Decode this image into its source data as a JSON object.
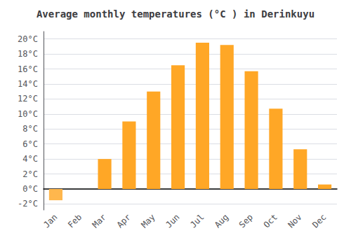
{
  "chart_data": {
    "type": "bar",
    "title": "Average monthly temperatures (°C ) in Derinkuyu",
    "categories": [
      "Jan",
      "Feb",
      "Mar",
      "Apr",
      "May",
      "Jun",
      "Jul",
      "Aug",
      "Sep",
      "Oct",
      "Nov",
      "Dec"
    ],
    "values": [
      -1.5,
      0.0,
      4.0,
      9.0,
      13.0,
      16.5,
      19.5,
      19.2,
      15.7,
      10.7,
      5.3,
      0.6
    ],
    "colors": [
      "#FFB74D",
      "#FFA726",
      "#FFA726",
      "#FFA726",
      "#FFA726",
      "#FFA726",
      "#FFA726",
      "#FFA726",
      "#FFA726",
      "#FFA726",
      "#FFA726",
      "#FFA726"
    ],
    "ylim": [
      -2.8,
      21
    ],
    "yticks": [
      {
        "value": -2,
        "label": "-2°C"
      },
      {
        "value": 0,
        "label": "0°C"
      },
      {
        "value": 2,
        "label": "2°C"
      },
      {
        "value": 4,
        "label": "4°C"
      },
      {
        "value": 6,
        "label": "6°C"
      },
      {
        "value": 8,
        "label": "8°C"
      },
      {
        "value": 10,
        "label": "10°C"
      },
      {
        "value": 12,
        "label": "12°C"
      },
      {
        "value": 14,
        "label": "14°C"
      },
      {
        "value": 16,
        "label": "16°C"
      },
      {
        "value": 18,
        "label": "18°C"
      },
      {
        "value": 20,
        "label": "20°C"
      }
    ],
    "grid": true
  }
}
